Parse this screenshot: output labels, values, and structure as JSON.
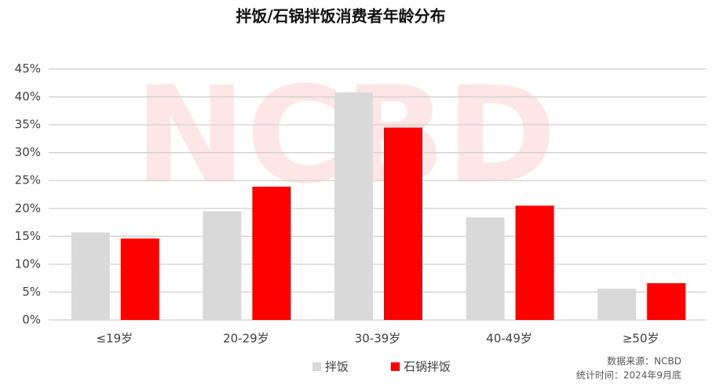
{
  "chart_data": {
    "type": "bar",
    "title": "拌饭/石锅拌饭消费者年龄分布",
    "categories": [
      "≤19岁",
      "20-29岁",
      "30-39岁",
      "40-49岁",
      "≥50岁"
    ],
    "series": [
      {
        "name": "拌饭",
        "color": "#d9d9d9",
        "values": [
          15.7,
          19.5,
          40.8,
          18.4,
          5.6
        ]
      },
      {
        "name": "石锅拌饭",
        "color": "#ff0000",
        "values": [
          14.6,
          23.9,
          34.5,
          20.5,
          6.6
        ]
      }
    ],
    "ylim": [
      0,
      45
    ],
    "yticks": [
      {
        "value": 0,
        "label": "0%"
      },
      {
        "value": 5,
        "label": "5%"
      },
      {
        "value": 10,
        "label": "10%"
      },
      {
        "value": 15,
        "label": "15%"
      },
      {
        "value": 20,
        "label": "20%"
      },
      {
        "value": 25,
        "label": "25%"
      },
      {
        "value": 30,
        "label": "30%"
      },
      {
        "value": 35,
        "label": "35%"
      },
      {
        "value": 40,
        "label": "40%"
      },
      {
        "value": 45,
        "label": "45%"
      }
    ],
    "grid": true,
    "legend": "bottom",
    "watermark": "NCBD",
    "source": "数据来源：NCBD",
    "period": "统计时间：2024年9月底"
  }
}
